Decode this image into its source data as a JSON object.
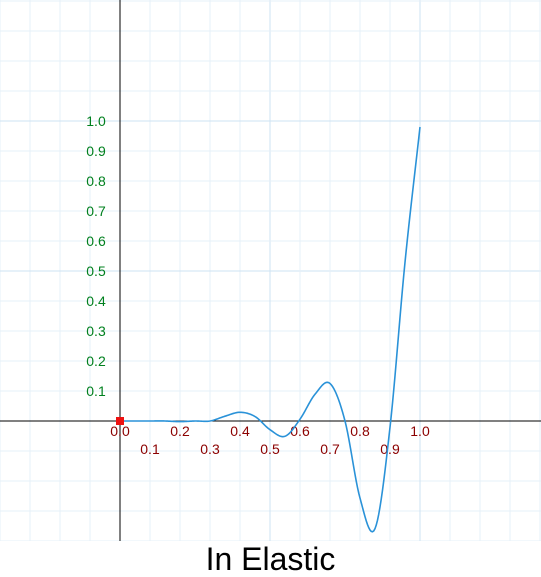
{
  "chart_data": {
    "type": "line",
    "title": "In Elastic",
    "xlim": [
      -0.4,
      1.4
    ],
    "ylim": [
      -0.4,
      1.4
    ],
    "grid": true,
    "x_ticks": [
      "0.0",
      "0.1",
      "0.2",
      "0.3",
      "0.4",
      "0.5",
      "0.6",
      "0.7",
      "0.8",
      "0.9",
      "1.0"
    ],
    "y_ticks": [
      "0.1",
      "0.2",
      "0.3",
      "0.4",
      "0.5",
      "0.6",
      "0.7",
      "0.8",
      "0.9",
      "1.0"
    ],
    "series": [
      {
        "x": [
          0.0,
          0.1,
          0.15,
          0.2,
          0.25,
          0.3,
          0.35,
          0.4,
          0.45,
          0.5,
          0.55,
          0.6,
          0.65,
          0.7,
          0.75,
          0.8,
          0.85,
          0.9,
          0.95,
          1.0
        ],
        "values": [
          0.0,
          0.0,
          0.0,
          -0.002,
          0.0,
          0.0,
          0.016,
          0.029,
          0.015,
          -0.029,
          -0.051,
          0.006,
          0.089,
          0.125,
          0.0,
          -0.257,
          -0.359,
          -0.021,
          0.529,
          0.98
        ]
      }
    ],
    "marker": {
      "x": 0.0,
      "y": 0.0
    },
    "colors": {
      "grid_minor": "#e6f0f8",
      "grid_major": "#cde3f3",
      "axis": "#000000",
      "curve": "#2a92d8",
      "x_tick_label": "#8b0000",
      "y_tick_label": "#00801e",
      "marker": "#ee1111"
    }
  }
}
